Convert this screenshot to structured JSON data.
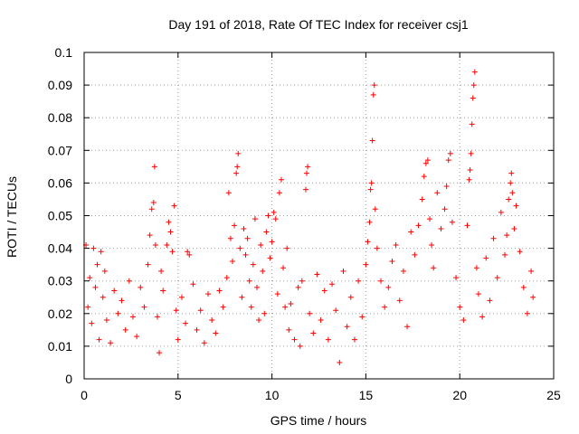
{
  "chart_data": {
    "type": "scatter",
    "title": "Day 191 of 2018, Rate Of TEC Index for receiver csj1",
    "xlabel": "GPS time / hours",
    "ylabel": "ROTI / TECUs",
    "xlim": [
      0,
      25
    ],
    "ylim": [
      0,
      0.1
    ],
    "x_ticks": [
      0,
      5,
      10,
      15,
      20,
      25
    ],
    "x_tick_labels": [
      "0",
      "5",
      "10",
      "15",
      "20",
      "25"
    ],
    "y_ticks": [
      0,
      0.01,
      0.02,
      0.03,
      0.04,
      0.05,
      0.06,
      0.07,
      0.08,
      0.09,
      0.1
    ],
    "y_tick_labels": [
      "0",
      "0.01",
      "0.02",
      "0.03",
      "0.04",
      "0.05",
      "0.06",
      "0.07",
      "0.08",
      "0.09",
      "0.1"
    ],
    "grid": true,
    "marker": "+",
    "color": "#ff0000",
    "series": [
      {
        "name": "ROTI",
        "points": [
          [
            0.1,
            0.041
          ],
          [
            0.2,
            0.022
          ],
          [
            0.3,
            0.031
          ],
          [
            0.4,
            0.017
          ],
          [
            0.5,
            0.04
          ],
          [
            0.6,
            0.028
          ],
          [
            0.7,
            0.035
          ],
          [
            0.8,
            0.012
          ],
          [
            0.9,
            0.039
          ],
          [
            1.0,
            0.025
          ],
          [
            1.1,
            0.033
          ],
          [
            1.2,
            0.018
          ],
          [
            1.4,
            0.011
          ],
          [
            1.6,
            0.027
          ],
          [
            1.8,
            0.02
          ],
          [
            2.0,
            0.024
          ],
          [
            2.2,
            0.015
          ],
          [
            2.4,
            0.03
          ],
          [
            2.6,
            0.019
          ],
          [
            2.8,
            0.013
          ],
          [
            3.0,
            0.028
          ],
          [
            3.2,
            0.022
          ],
          [
            3.4,
            0.035
          ],
          [
            3.5,
            0.044
          ],
          [
            3.6,
            0.052
          ],
          [
            3.7,
            0.054
          ],
          [
            3.75,
            0.065
          ],
          [
            3.8,
            0.041
          ],
          [
            3.9,
            0.019
          ],
          [
            4.0,
            0.008
          ],
          [
            4.1,
            0.033
          ],
          [
            4.2,
            0.027
          ],
          [
            4.4,
            0.041
          ],
          [
            4.5,
            0.048
          ],
          [
            4.6,
            0.045
          ],
          [
            4.7,
            0.039
          ],
          [
            4.8,
            0.053
          ],
          [
            4.9,
            0.021
          ],
          [
            5.0,
            0.012
          ],
          [
            5.2,
            0.025
          ],
          [
            5.4,
            0.017
          ],
          [
            5.5,
            0.039
          ],
          [
            5.6,
            0.038
          ],
          [
            5.8,
            0.029
          ],
          [
            6.0,
            0.015
          ],
          [
            6.2,
            0.021
          ],
          [
            6.4,
            0.011
          ],
          [
            6.6,
            0.026
          ],
          [
            6.8,
            0.018
          ],
          [
            7.0,
            0.014
          ],
          [
            7.2,
            0.027
          ],
          [
            7.4,
            0.022
          ],
          [
            7.6,
            0.031
          ],
          [
            7.7,
            0.057
          ],
          [
            7.8,
            0.043
          ],
          [
            7.9,
            0.036
          ],
          [
            8.0,
            0.047
          ],
          [
            8.1,
            0.063
          ],
          [
            8.15,
            0.065
          ],
          [
            8.2,
            0.069
          ],
          [
            8.3,
            0.04
          ],
          [
            8.4,
            0.025
          ],
          [
            8.5,
            0.046
          ],
          [
            8.6,
            0.038
          ],
          [
            8.7,
            0.043
          ],
          [
            8.8,
            0.03
          ],
          [
            8.9,
            0.022
          ],
          [
            9.0,
            0.035
          ],
          [
            9.1,
            0.049
          ],
          [
            9.2,
            0.028
          ],
          [
            9.3,
            0.018
          ],
          [
            9.4,
            0.041
          ],
          [
            9.5,
            0.033
          ],
          [
            9.6,
            0.02
          ],
          [
            9.7,
            0.045
          ],
          [
            9.8,
            0.05
          ],
          [
            9.9,
            0.037
          ],
          [
            10.0,
            0.042
          ],
          [
            10.1,
            0.051
          ],
          [
            10.2,
            0.049
          ],
          [
            10.3,
            0.026
          ],
          [
            10.4,
            0.057
          ],
          [
            10.5,
            0.061
          ],
          [
            10.6,
            0.034
          ],
          [
            10.7,
            0.022
          ],
          [
            10.8,
            0.04
          ],
          [
            10.9,
            0.015
          ],
          [
            11.0,
            0.023
          ],
          [
            11.2,
            0.012
          ],
          [
            11.4,
            0.028
          ],
          [
            11.5,
            0.01
          ],
          [
            11.6,
            0.03
          ],
          [
            11.8,
            0.058
          ],
          [
            11.85,
            0.063
          ],
          [
            11.9,
            0.065
          ],
          [
            12.0,
            0.02
          ],
          [
            12.2,
            0.014
          ],
          [
            12.4,
            0.032
          ],
          [
            12.6,
            0.018
          ],
          [
            12.8,
            0.027
          ],
          [
            13.0,
            0.012
          ],
          [
            13.2,
            0.029
          ],
          [
            13.4,
            0.021
          ],
          [
            13.6,
            0.005
          ],
          [
            13.8,
            0.033
          ],
          [
            14.0,
            0.016
          ],
          [
            14.2,
            0.025
          ],
          [
            14.4,
            0.012
          ],
          [
            14.6,
            0.03
          ],
          [
            14.8,
            0.019
          ],
          [
            15.0,
            0.035
          ],
          [
            15.1,
            0.042
          ],
          [
            15.2,
            0.048
          ],
          [
            15.25,
            0.058
          ],
          [
            15.3,
            0.06
          ],
          [
            15.35,
            0.073
          ],
          [
            15.4,
            0.087
          ],
          [
            15.45,
            0.09
          ],
          [
            15.5,
            0.052
          ],
          [
            15.6,
            0.04
          ],
          [
            15.8,
            0.03
          ],
          [
            16.0,
            0.022
          ],
          [
            16.2,
            0.028
          ],
          [
            16.4,
            0.036
          ],
          [
            16.6,
            0.041
          ],
          [
            16.8,
            0.024
          ],
          [
            17.0,
            0.033
          ],
          [
            17.2,
            0.016
          ],
          [
            17.4,
            0.045
          ],
          [
            17.6,
            0.038
          ],
          [
            17.8,
            0.047
          ],
          [
            18.0,
            0.055
          ],
          [
            18.1,
            0.062
          ],
          [
            18.2,
            0.066
          ],
          [
            18.3,
            0.067
          ],
          [
            18.4,
            0.049
          ],
          [
            18.5,
            0.041
          ],
          [
            18.6,
            0.034
          ],
          [
            18.8,
            0.057
          ],
          [
            19.0,
            0.046
          ],
          [
            19.2,
            0.052
          ],
          [
            19.3,
            0.059
          ],
          [
            19.4,
            0.067
          ],
          [
            19.5,
            0.069
          ],
          [
            19.6,
            0.048
          ],
          [
            19.8,
            0.031
          ],
          [
            20.0,
            0.022
          ],
          [
            20.2,
            0.018
          ],
          [
            20.4,
            0.047
          ],
          [
            20.5,
            0.061
          ],
          [
            20.55,
            0.064
          ],
          [
            20.6,
            0.069
          ],
          [
            20.65,
            0.078
          ],
          [
            20.7,
            0.086
          ],
          [
            20.75,
            0.09
          ],
          [
            20.8,
            0.094
          ],
          [
            20.9,
            0.034
          ],
          [
            21.0,
            0.026
          ],
          [
            21.2,
            0.019
          ],
          [
            21.4,
            0.037
          ],
          [
            21.6,
            0.024
          ],
          [
            21.8,
            0.043
          ],
          [
            22.0,
            0.031
          ],
          [
            22.2,
            0.051
          ],
          [
            22.4,
            0.038
          ],
          [
            22.5,
            0.044
          ],
          [
            22.6,
            0.055
          ],
          [
            22.7,
            0.06
          ],
          [
            22.75,
            0.063
          ],
          [
            22.8,
            0.057
          ],
          [
            22.9,
            0.046
          ],
          [
            23.0,
            0.053
          ],
          [
            23.2,
            0.039
          ],
          [
            23.4,
            0.028
          ],
          [
            23.6,
            0.02
          ],
          [
            23.8,
            0.033
          ],
          [
            23.9,
            0.025
          ]
        ]
      }
    ]
  }
}
